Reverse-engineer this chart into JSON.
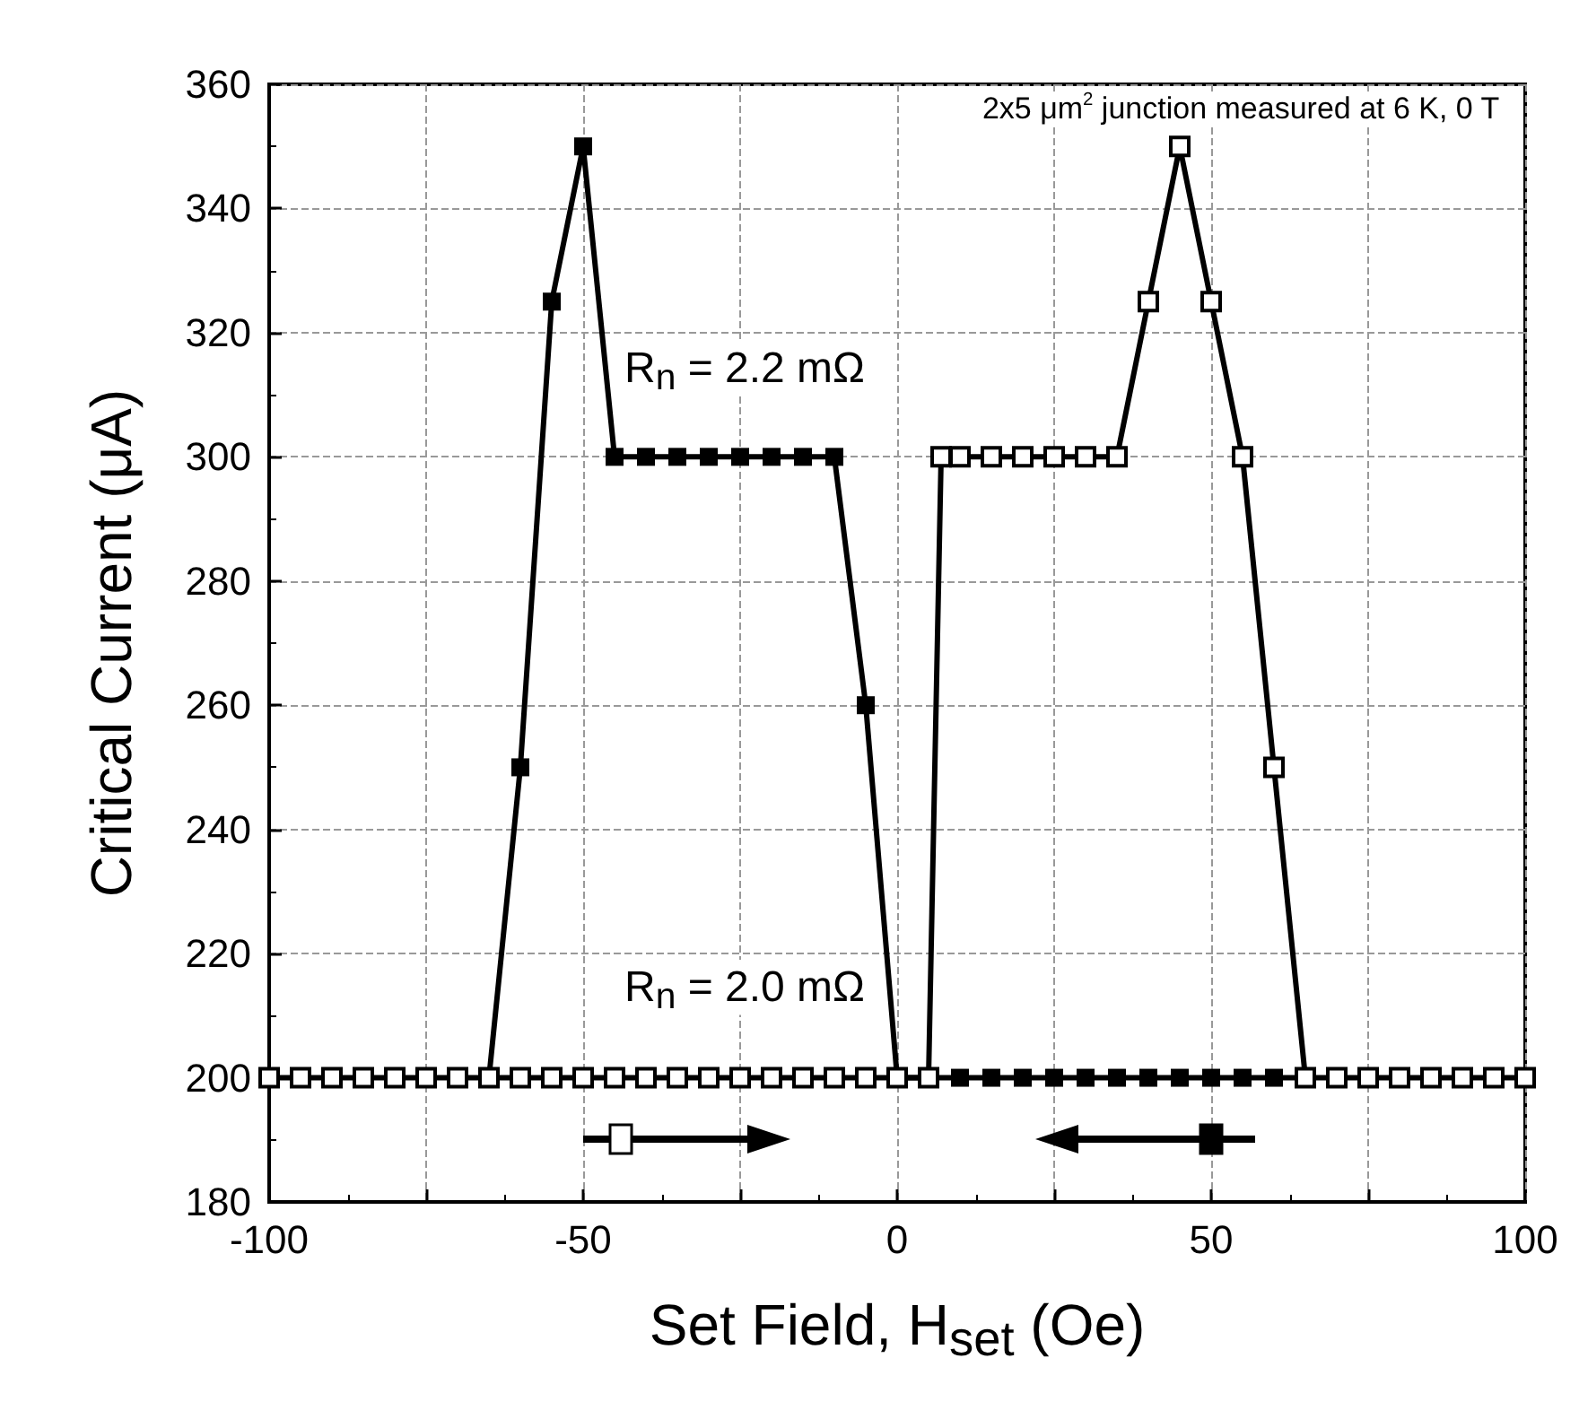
{
  "chart_data": {
    "type": "line",
    "xlabel": "Set Field, H$_{set}$ (Oe)",
    "ylabel": "Critical Current (μA)",
    "annotations": [
      "2x5 μm$^{2}$ junction measured at 6 K, 0 T",
      "R$_{n}$ = 2.2 mΩ",
      "R$_{n}$ = 2.0 mΩ"
    ],
    "xlim": [
      -100,
      100
    ],
    "ylim": [
      180,
      360
    ],
    "xticks": [
      -100,
      {
        "value": -75,
        "label": null
      },
      -50,
      {
        "value": -25,
        "label": null
      },
      0,
      {
        "value": 25,
        "label": null
      },
      50,
      {
        "value": 75,
        "label": null
      },
      100
    ],
    "yticks": [
      180,
      200,
      220,
      240,
      260,
      280,
      300,
      320,
      340,
      360
    ],
    "grid": true,
    "marker": "square",
    "line_style": "solid",
    "series": [
      {
        "color": "#000000",
        "x": [
          -100,
          -95,
          -90,
          -85,
          -80,
          -75,
          -70,
          -65,
          -60,
          -55,
          -50,
          -45,
          -40,
          -35,
          -30,
          -25,
          -20,
          -15,
          -10,
          -5,
          0,
          5,
          7,
          10,
          15,
          20,
          25,
          30,
          35,
          40,
          45,
          50,
          55,
          60,
          65,
          70,
          75,
          80,
          85,
          90,
          95,
          100
        ],
        "values": [
          200,
          200,
          200,
          200,
          200,
          200,
          200,
          200,
          200,
          200,
          200,
          200,
          200,
          200,
          200,
          200,
          200,
          200,
          200,
          200,
          200,
          200,
          300,
          300,
          300,
          300,
          300,
          300,
          300,
          325,
          350,
          325,
          300,
          250,
          200,
          200,
          200,
          200,
          200,
          200,
          200,
          200
        ]
      },
      {
        "color": "#000000",
        "x": [
          65,
          60,
          55,
          50,
          45,
          40,
          35,
          30,
          25,
          20,
          15,
          10,
          5,
          0,
          -5,
          -10,
          -15,
          -20,
          -25,
          -30,
          -35,
          -40,
          -45,
          -50,
          -55,
          -60,
          -65
        ],
        "values": [
          200,
          200,
          200,
          200,
          200,
          200,
          200,
          200,
          200,
          200,
          200,
          200,
          200,
          200,
          260,
          300,
          300,
          300,
          300,
          300,
          300,
          300,
          300,
          350,
          325,
          250,
          200
        ]
      }
    ]
  }
}
